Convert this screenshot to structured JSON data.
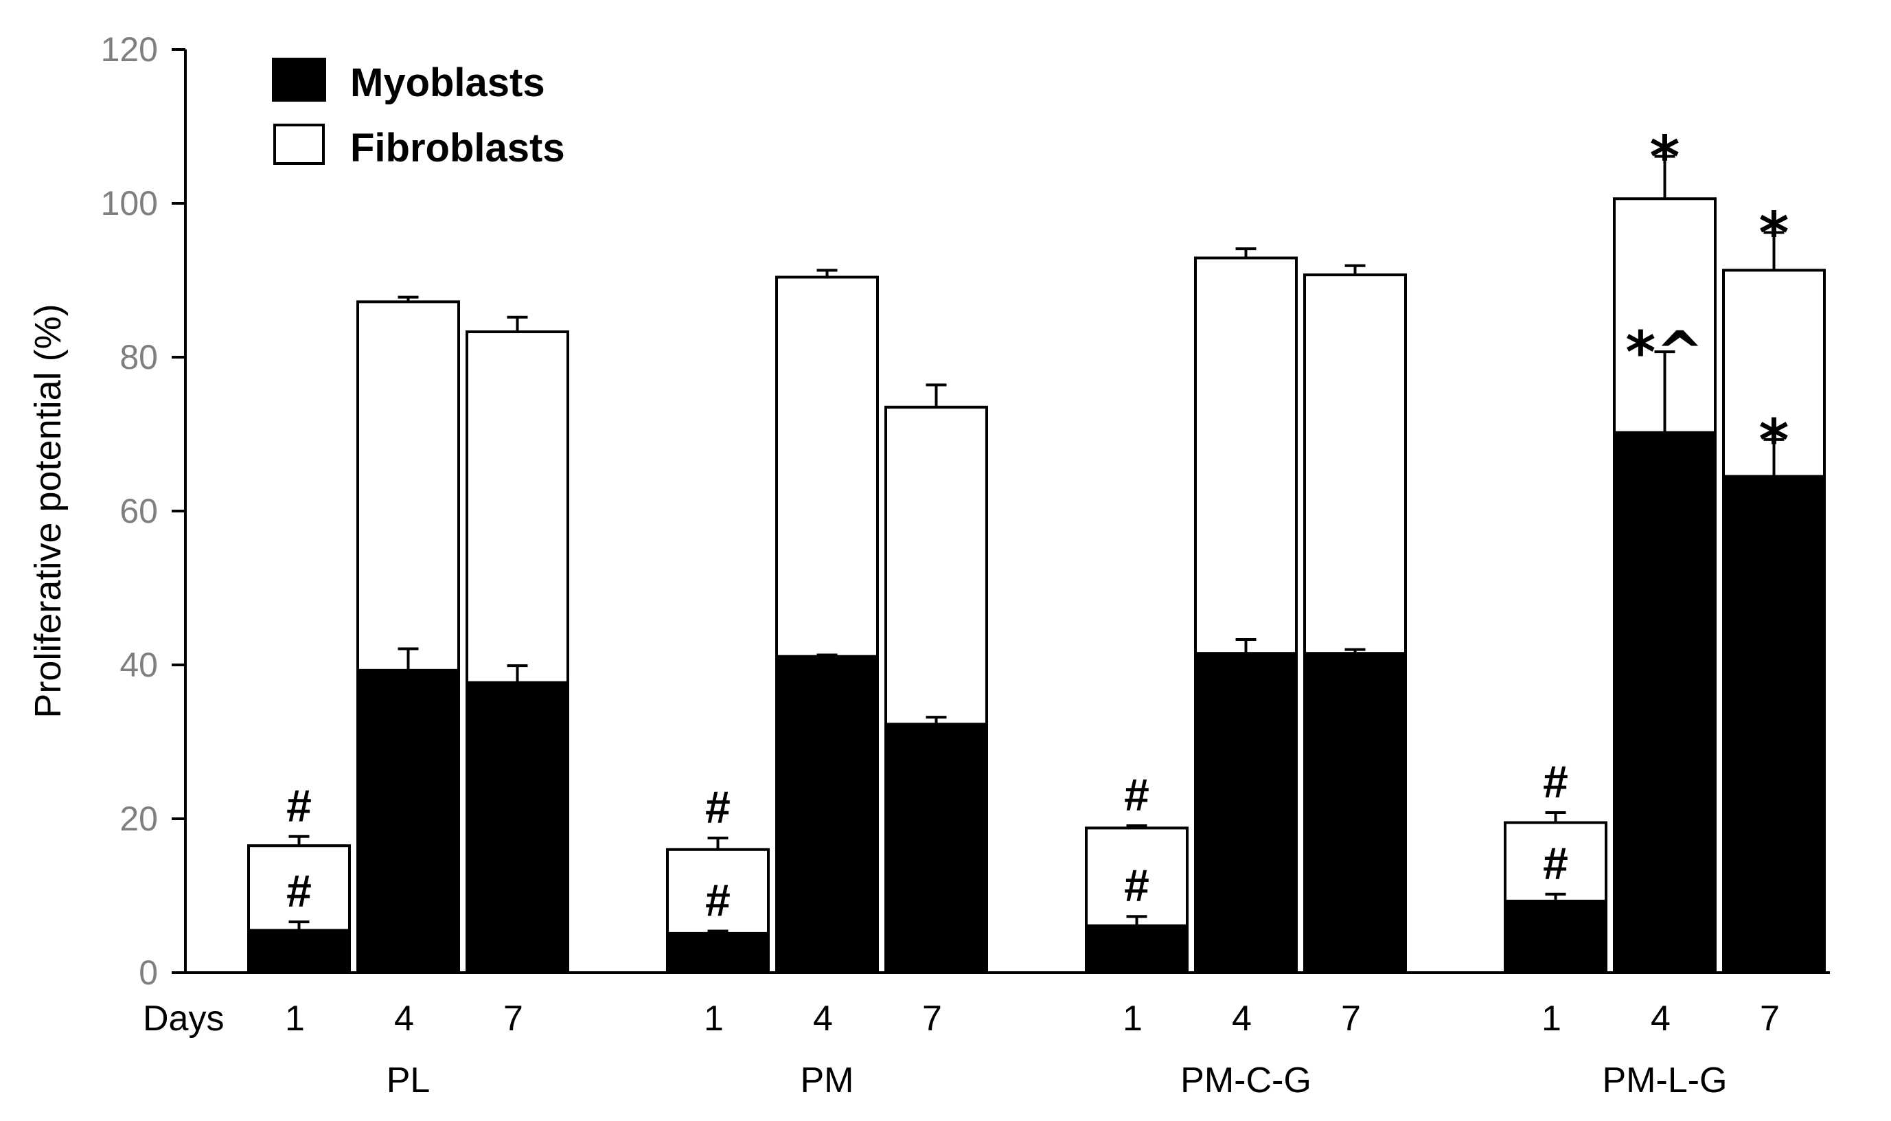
{
  "chart_data": {
    "type": "bar",
    "stacked": true,
    "ylabel": "Proliferative  potential (%)",
    "ylim": [
      0,
      120
    ],
    "yticks": [
      0,
      20,
      40,
      60,
      80,
      100,
      120
    ],
    "days_label": "Days",
    "days": [
      "1",
      "4",
      "7"
    ],
    "groups": [
      "PL",
      "PM",
      "PM-C-G",
      "PM-L-G"
    ],
    "legend": [
      {
        "name": "Myoblasts",
        "color": "#000000"
      },
      {
        "name": "Fibroblasts",
        "color": "#ffffff"
      }
    ],
    "series": [
      {
        "name": "Myoblasts",
        "values": [
          5.5,
          39.3,
          37.7,
          5.1,
          41.1,
          32.3,
          6.1,
          41.5,
          41.5,
          9.3,
          70.2,
          64.5
        ],
        "errors": [
          1.1,
          2.8,
          2.2,
          0.3,
          0.2,
          0.9,
          1.2,
          1.8,
          0.5,
          0.9,
          10.5,
          4.8
        ]
      },
      {
        "name": "Fibroblasts",
        "totals": [
          16.5,
          87.2,
          83.3,
          16.0,
          90.4,
          73.5,
          18.8,
          92.9,
          90.7,
          19.5,
          100.6,
          91.3
        ],
        "errors": [
          1.2,
          0.6,
          1.9,
          1.5,
          0.9,
          2.9,
          0.3,
          1.2,
          1.2,
          1.3,
          5.5,
          4.9
        ]
      }
    ],
    "annotations": [
      {
        "bar": 0,
        "level": "total",
        "text": "#"
      },
      {
        "bar": 0,
        "level": "myoblast",
        "text": "#"
      },
      {
        "bar": 3,
        "level": "total",
        "text": "#"
      },
      {
        "bar": 3,
        "level": "myoblast",
        "text": "#"
      },
      {
        "bar": 6,
        "level": "total",
        "text": "#"
      },
      {
        "bar": 6,
        "level": "myoblast",
        "text": "#"
      },
      {
        "bar": 9,
        "level": "total",
        "text": "#"
      },
      {
        "bar": 9,
        "level": "myoblast",
        "text": "#"
      },
      {
        "bar": 10,
        "level": "total",
        "text": "*"
      },
      {
        "bar": 10,
        "level": "myoblast",
        "text": "*^"
      },
      {
        "bar": 11,
        "level": "total",
        "text": "*"
      },
      {
        "bar": 11,
        "level": "myoblast",
        "text": "*"
      }
    ]
  }
}
